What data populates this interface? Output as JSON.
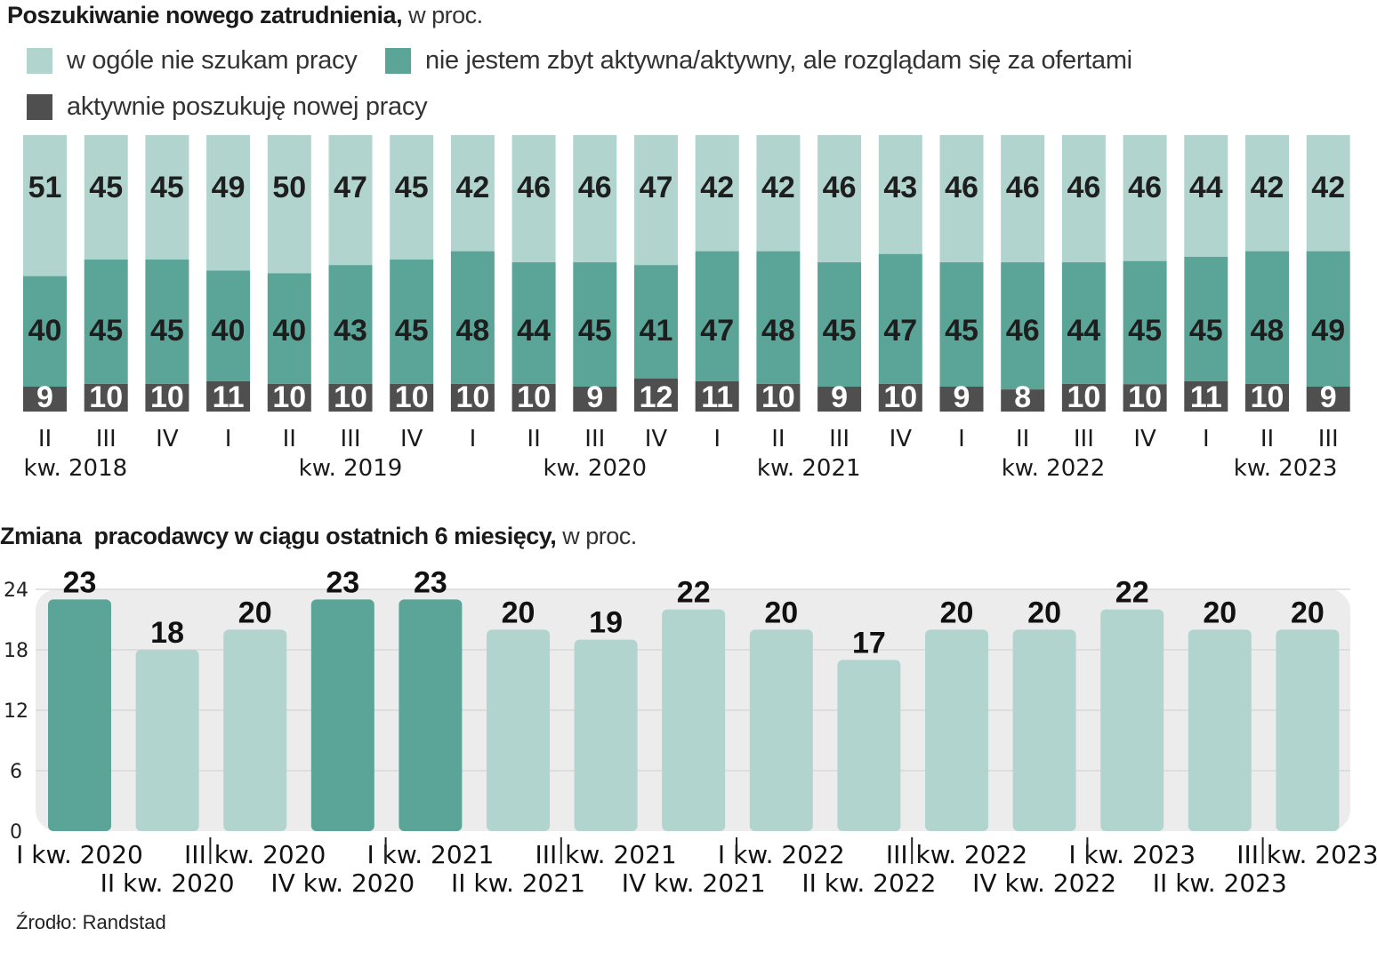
{
  "colors": {
    "light": "#b2d4ce",
    "mid": "#5ba598",
    "dark": "#4f4f4f",
    "panel": "#ececec",
    "grid": "#d8d8d8"
  },
  "chart_data": [
    {
      "type": "bar",
      "stacked": true,
      "title": "Poszukiwanie nowego zatrudnienia,",
      "title_unit": "w proc.",
      "legend": [
        {
          "label": "w ogóle nie szukam pracy",
          "color": "#b2d4ce"
        },
        {
          "label": "nie jestem zbyt aktywna/aktywny, ale rozglądam się za ofertami",
          "color": "#5ba598"
        },
        {
          "label": "aktywnie poszukuję nowej pracy",
          "color": "#4f4f4f"
        }
      ],
      "categories": [
        "II",
        "III",
        "IV",
        "I",
        "II",
        "III",
        "IV",
        "I",
        "II",
        "III",
        "IV",
        "I",
        "II",
        "III",
        "IV",
        "I",
        "II",
        "III",
        "IV",
        "I",
        "II",
        "III"
      ],
      "year_labels": [
        {
          "label": "kw. 2018",
          "index": 0.5
        },
        {
          "label": "kw. 2019",
          "index": 5
        },
        {
          "label": "kw. 2020",
          "index": 9
        },
        {
          "label": "kw. 2021",
          "index": 12.5
        },
        {
          "label": "kw. 2022",
          "index": 16.5
        },
        {
          "label": "kw. 2023",
          "index": 20.3
        }
      ],
      "series": [
        {
          "name": "w ogóle nie szukam pracy",
          "values": [
            51,
            45,
            45,
            49,
            50,
            47,
            45,
            42,
            46,
            46,
            47,
            42,
            42,
            46,
            43,
            46,
            46,
            46,
            46,
            44,
            42,
            42
          ]
        },
        {
          "name": "nie jestem zbyt aktywna/aktywny, ale rozglądam się za ofertami",
          "values": [
            40,
            45,
            45,
            40,
            40,
            43,
            45,
            48,
            44,
            45,
            41,
            47,
            48,
            45,
            47,
            45,
            46,
            44,
            45,
            45,
            48,
            49
          ]
        },
        {
          "name": "aktywnie poszukuję nowej pracy",
          "values": [
            9,
            10,
            10,
            11,
            10,
            10,
            10,
            10,
            10,
            9,
            12,
            11,
            10,
            9,
            10,
            9,
            8,
            10,
            10,
            11,
            10,
            9
          ]
        }
      ],
      "xlabel": "",
      "ylabel": ""
    },
    {
      "type": "bar",
      "title": "Zmiana  pracodawcy w ciągu ostatnich 6 miesięcy,",
      "title_unit": "w proc.",
      "categories": [
        "I kw. 2020",
        "II kw. 2020",
        "III kw. 2020",
        "IV kw. 2020",
        "I kw. 2021",
        "II kw. 2021",
        "III kw. 2021",
        "IV kw. 2021",
        "I kw. 2022",
        "II kw. 2022",
        "III kw. 2022",
        "IV kw. 2022",
        "I kw. 2023",
        "II kw. 2023",
        "III kw. 2023"
      ],
      "values": [
        23,
        18,
        20,
        23,
        23,
        20,
        19,
        22,
        20,
        17,
        20,
        20,
        22,
        20,
        20
      ],
      "highlighted": [
        true,
        false,
        false,
        true,
        true,
        false,
        false,
        false,
        false,
        false,
        false,
        false,
        false,
        false,
        false
      ],
      "yticks": [
        0,
        6,
        12,
        18,
        24
      ],
      "ylim": [
        0,
        24
      ],
      "grid": true,
      "xlabel": "",
      "ylabel": ""
    }
  ],
  "source": "Źrodło: Randstad"
}
